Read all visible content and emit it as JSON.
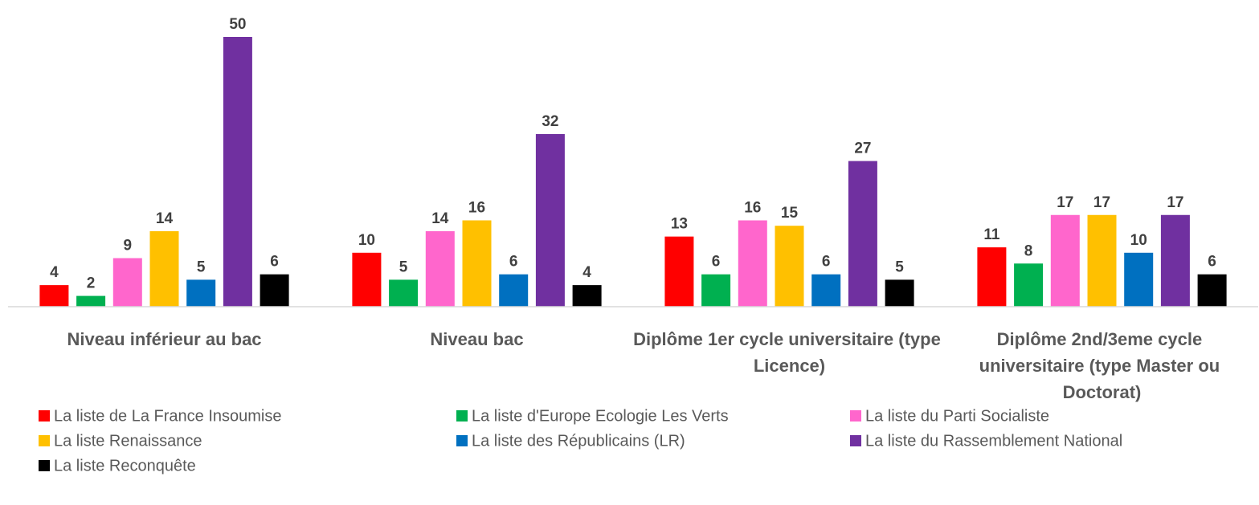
{
  "chart_data": {
    "type": "bar",
    "categories": [
      "Niveau inférieur au bac",
      "Niveau bac",
      "Diplôme 1er cycle universitaire (type Licence)",
      "Diplôme 2nd/3eme cycle universitaire (type Master ou Doctorat)"
    ],
    "series": [
      {
        "name": "La liste de La France Insoumise",
        "color": "#ff0000",
        "values": [
          4,
          10,
          13,
          11
        ]
      },
      {
        "name": "La liste d'Europe Ecologie Les Verts",
        "color": "#00b050",
        "values": [
          2,
          5,
          6,
          8
        ]
      },
      {
        "name": "La liste du Parti Socialiste",
        "color": "#ff66cc",
        "values": [
          9,
          14,
          16,
          17
        ]
      },
      {
        "name": "La liste Renaissance",
        "color": "#ffc000",
        "values": [
          14,
          16,
          15,
          17
        ]
      },
      {
        "name": "La liste des Républicains (LR)",
        "color": "#0070c0",
        "values": [
          5,
          6,
          6,
          10
        ]
      },
      {
        "name": "La liste du Rassemblement National",
        "color": "#7030a0",
        "values": [
          50,
          32,
          27,
          17
        ]
      },
      {
        "name": "La liste Reconquête",
        "color": "#000000",
        "values": [
          6,
          4,
          5,
          6
        ]
      }
    ],
    "ylim": [
      0,
      50
    ],
    "legend": "bottom"
  }
}
